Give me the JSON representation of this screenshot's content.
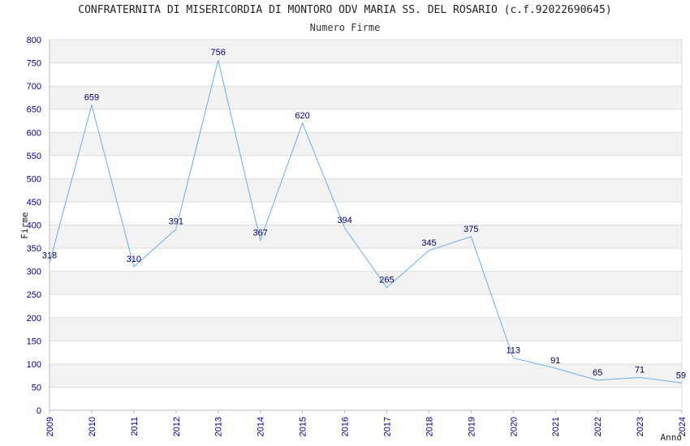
{
  "chart_data": {
    "type": "line",
    "title": "CONFRATERNITA DI MISERICORDIA DI MONTORO ODV MARIA SS. DEL ROSARIO (c.f.92022690645)",
    "subtitle": "Numero Firme",
    "xlabel": "Anno",
    "ylabel": "Firme",
    "categories": [
      "2009",
      "2010",
      "2011",
      "2012",
      "2013",
      "2014",
      "2015",
      "2016",
      "2017",
      "2018",
      "2019",
      "2020",
      "2021",
      "2022",
      "2023",
      "2024"
    ],
    "values": [
      318,
      659,
      310,
      391,
      756,
      367,
      620,
      394,
      265,
      345,
      375,
      113,
      91,
      65,
      71,
      59
    ],
    "ylim": [
      0,
      800
    ],
    "ytick_step": 50,
    "grid": true,
    "band_fill": "#f2f2f2",
    "grid_color": "#dddddd",
    "line_color": "#6aaee8",
    "tick_color": "#00008b",
    "label_color": "#00005a"
  }
}
